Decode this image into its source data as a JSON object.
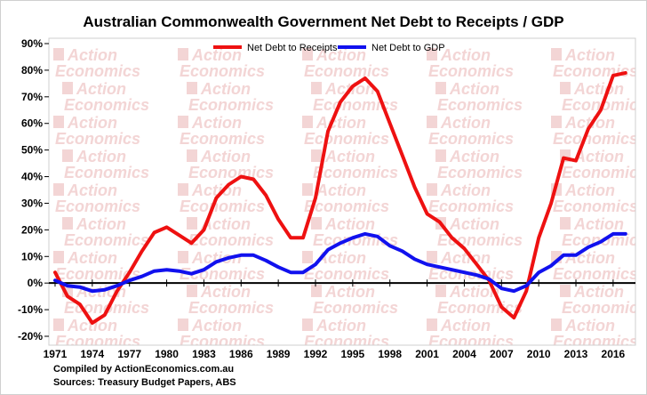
{
  "chart_data": {
    "type": "line",
    "title": "Australian Commonwealth Government Net Debt to Receipts / GDP",
    "xlabel": "",
    "ylabel": "",
    "ylim": [
      -20,
      90
    ],
    "yticks": [
      "90%",
      "80%",
      "70%",
      "60%",
      "50%",
      "40%",
      "30%",
      "20%",
      "10%",
      "0%",
      "-10%",
      "-20%"
    ],
    "ytick_values": [
      90,
      80,
      70,
      60,
      50,
      40,
      30,
      20,
      10,
      0,
      -10,
      -20
    ],
    "xticks": [
      "1971",
      "1974",
      "1977",
      "1980",
      "1983",
      "1986",
      "1989",
      "1992",
      "1995",
      "1998",
      "2001",
      "2004",
      "2007",
      "2010",
      "2013",
      "2016"
    ],
    "xtick_values": [
      1971,
      1974,
      1977,
      1980,
      1983,
      1986,
      1989,
      1992,
      1995,
      1998,
      2001,
      2004,
      2007,
      2010,
      2013,
      2016
    ],
    "xlim": [
      1970.5,
      2017.8
    ],
    "grid": false,
    "legend_position": "top",
    "x": [
      1971,
      1972,
      1973,
      1974,
      1975,
      1976,
      1977,
      1978,
      1979,
      1980,
      1981,
      1982,
      1983,
      1984,
      1985,
      1986,
      1987,
      1988,
      1989,
      1990,
      1991,
      1992,
      1993,
      1994,
      1995,
      1996,
      1997,
      1998,
      1999,
      2000,
      2001,
      2002,
      2003,
      2004,
      2005,
      2006,
      2007,
      2008,
      2009,
      2010,
      2011,
      2012,
      2013,
      2014,
      2015,
      2016,
      2017
    ],
    "series": [
      {
        "name": "Net Debt to Receipts",
        "color": "#ee1111",
        "values": [
          4,
          -5,
          -8,
          -15,
          -12,
          -3,
          4,
          12,
          19,
          21,
          18,
          15,
          20,
          32,
          37,
          40,
          39,
          33,
          24,
          17,
          17,
          32,
          57,
          68,
          74,
          77,
          72,
          60,
          48,
          36,
          26,
          23,
          17,
          13,
          7,
          1,
          -9,
          -13,
          -3,
          17,
          30,
          47,
          46,
          58,
          65,
          78,
          79
        ]
      },
      {
        "name": "Net Debt to GDP",
        "color": "#1111ee",
        "values": [
          1,
          -1,
          -1.5,
          -3,
          -2.5,
          -1,
          1,
          2.5,
          4.5,
          5,
          4.5,
          3.5,
          5,
          8,
          9.5,
          10.5,
          10.5,
          8.5,
          6,
          4,
          4,
          7,
          12.5,
          15,
          17,
          18.5,
          17.5,
          14,
          12,
          9,
          7,
          6,
          5,
          4,
          3,
          1.5,
          -2,
          -3,
          -1,
          4,
          6.5,
          10.5,
          10.5,
          13.5,
          15.5,
          18.5,
          18.5
        ]
      }
    ]
  },
  "footnote": {
    "compiled": "Compiled by ActionEconomics.com.au",
    "sources": "Sources: Treasury Budget Papers, ABS"
  },
  "watermark": {
    "line1": "Action",
    "line2": "Economics",
    "color": "#f3d5d5"
  }
}
